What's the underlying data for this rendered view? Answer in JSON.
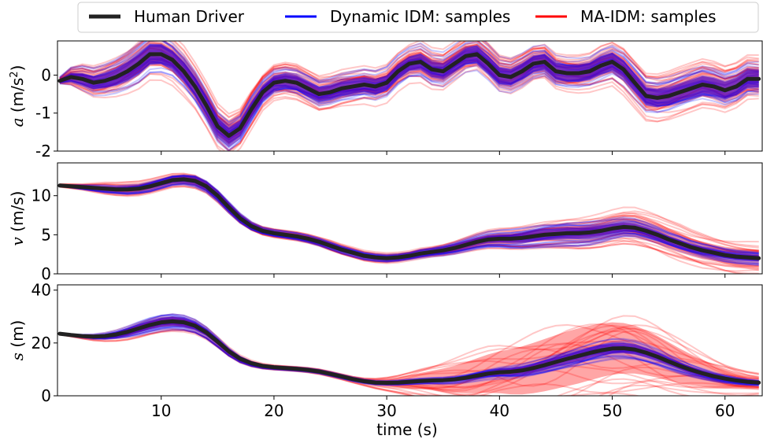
{
  "legend": {
    "human": "Human Driver",
    "dyn": "Dynamic IDM: samples",
    "ma": "MA-IDM: samples"
  },
  "colors": {
    "human": "#222222",
    "dyn": "#0000ff",
    "ma": "#ff0000",
    "frame": "#000000"
  },
  "chart_data": {
    "type": "line",
    "xlabel": "time (s)",
    "xlim": [
      0.8,
      63.3
    ],
    "xticks": [
      10,
      20,
      30,
      40,
      50,
      60
    ],
    "panels": [
      {
        "id": "a",
        "ylabel_symbol": "a",
        "ylabel_unit": "(m/s",
        "ylabel_sup": "2",
        "ylabel_close": ")",
        "ylim": [
          -2.0,
          0.9
        ],
        "yticks": [
          0,
          -1,
          -2
        ],
        "human": {
          "x": [
            1,
            2,
            3,
            4,
            5,
            6,
            7,
            8,
            9,
            10,
            11,
            12,
            13,
            14,
            15,
            16,
            17,
            18,
            19,
            20,
            21,
            22,
            23,
            24,
            25,
            26,
            27,
            28,
            29,
            30,
            31,
            32,
            33,
            34,
            35,
            36,
            37,
            38,
            39,
            40,
            41,
            42,
            43,
            44,
            45,
            46,
            47,
            48,
            49,
            50,
            51,
            52,
            53,
            54,
            55,
            56,
            57,
            58,
            59,
            60,
            61,
            62,
            63
          ],
          "y": [
            -0.15,
            -0.05,
            -0.1,
            -0.2,
            -0.15,
            -0.05,
            0.1,
            0.3,
            0.55,
            0.55,
            0.4,
            0.1,
            -0.3,
            -0.8,
            -1.35,
            -1.6,
            -1.4,
            -0.9,
            -0.45,
            -0.2,
            -0.15,
            -0.2,
            -0.35,
            -0.5,
            -0.45,
            -0.35,
            -0.3,
            -0.25,
            -0.3,
            -0.2,
            0.1,
            0.3,
            0.35,
            0.15,
            0.1,
            0.3,
            0.5,
            0.55,
            0.3,
            0.0,
            -0.05,
            0.1,
            0.3,
            0.35,
            0.1,
            0.05,
            0.05,
            0.1,
            0.25,
            0.35,
            0.15,
            -0.2,
            -0.55,
            -0.6,
            -0.55,
            -0.45,
            -0.35,
            -0.25,
            -0.3,
            -0.4,
            -0.3,
            -0.1,
            -0.1
          ]
        },
        "dyn_band": [
          0.1,
          0.25,
          0.35,
          0.4,
          0.45,
          0.5,
          0.55,
          0.6,
          0.6,
          0.6,
          0.55,
          0.55,
          0.55,
          0.55,
          0.55,
          0.55,
          0.5,
          0.5,
          0.45,
          0.45,
          0.45,
          0.45,
          0.45,
          0.45,
          0.45,
          0.45,
          0.45,
          0.45,
          0.45,
          0.45,
          0.45,
          0.45,
          0.5,
          0.5,
          0.5,
          0.5,
          0.5,
          0.5,
          0.5,
          0.5,
          0.5,
          0.5,
          0.5,
          0.5,
          0.5,
          0.5,
          0.5,
          0.5,
          0.55,
          0.55,
          0.55,
          0.55,
          0.55,
          0.55,
          0.55,
          0.55,
          0.55,
          0.55,
          0.55,
          0.55,
          0.55,
          0.55,
          0.55
        ],
        "ma_band": [
          0.1,
          0.3,
          0.45,
          0.5,
          0.55,
          0.6,
          0.65,
          0.7,
          0.7,
          0.7,
          0.7,
          0.7,
          0.65,
          0.65,
          0.65,
          0.65,
          0.6,
          0.6,
          0.55,
          0.55,
          0.55,
          0.55,
          0.55,
          0.55,
          0.55,
          0.55,
          0.55,
          0.55,
          0.55,
          0.55,
          0.55,
          0.55,
          0.6,
          0.6,
          0.6,
          0.6,
          0.6,
          0.6,
          0.6,
          0.6,
          0.6,
          0.6,
          0.6,
          0.6,
          0.6,
          0.6,
          0.6,
          0.6,
          0.65,
          0.65,
          0.7,
          0.7,
          0.7,
          0.7,
          0.7,
          0.7,
          0.7,
          0.7,
          0.7,
          0.7,
          0.7,
          0.7,
          0.7
        ]
      },
      {
        "id": "v",
        "ylabel_symbol": "v",
        "ylabel_unit": "(m/s)",
        "ylim": [
          0,
          14.2
        ],
        "yticks": [
          0,
          5,
          10
        ],
        "human": {
          "x": [
            1,
            2,
            3,
            4,
            5,
            6,
            7,
            8,
            9,
            10,
            11,
            12,
            13,
            14,
            15,
            16,
            17,
            18,
            19,
            20,
            21,
            22,
            23,
            24,
            25,
            26,
            27,
            28,
            29,
            30,
            31,
            32,
            33,
            34,
            35,
            36,
            37,
            38,
            39,
            40,
            41,
            42,
            43,
            44,
            45,
            46,
            47,
            48,
            49,
            50,
            51,
            52,
            53,
            54,
            55,
            56,
            57,
            58,
            59,
            60,
            61,
            62,
            63
          ],
          "y": [
            11.3,
            11.2,
            11.1,
            11.0,
            10.9,
            10.8,
            10.8,
            10.9,
            11.2,
            11.6,
            12.0,
            12.1,
            11.9,
            11.2,
            10.0,
            8.5,
            7.1,
            6.1,
            5.5,
            5.2,
            5.0,
            4.8,
            4.5,
            4.1,
            3.6,
            3.1,
            2.7,
            2.3,
            2.1,
            2.0,
            2.1,
            2.3,
            2.6,
            2.8,
            3.0,
            3.3,
            3.7,
            4.1,
            4.4,
            4.5,
            4.5,
            4.6,
            4.8,
            5.0,
            5.1,
            5.2,
            5.2,
            5.3,
            5.5,
            5.8,
            6.0,
            5.9,
            5.5,
            5.0,
            4.4,
            3.9,
            3.4,
            3.0,
            2.7,
            2.4,
            2.2,
            2.1,
            2.0
          ]
        },
        "dyn_band": [
          0.1,
          0.2,
          0.3,
          0.4,
          0.5,
          0.5,
          0.6,
          0.6,
          0.7,
          0.7,
          0.7,
          0.7,
          0.8,
          0.8,
          0.8,
          0.8,
          0.7,
          0.6,
          0.5,
          0.5,
          0.5,
          0.5,
          0.5,
          0.5,
          0.5,
          0.5,
          0.5,
          0.5,
          0.5,
          0.5,
          0.5,
          0.5,
          0.6,
          0.6,
          0.7,
          0.8,
          0.9,
          1.0,
          1.1,
          1.2,
          1.3,
          1.4,
          1.5,
          1.6,
          1.6,
          1.7,
          1.7,
          1.7,
          1.6,
          1.5,
          1.4,
          1.3,
          1.2,
          1.1,
          1.0,
          1.0,
          0.9,
          0.9,
          0.9,
          0.9,
          0.9,
          0.9,
          0.9
        ],
        "ma_band": [
          0.2,
          0.3,
          0.4,
          0.6,
          0.8,
          0.9,
          1.0,
          1.0,
          1.0,
          1.0,
          1.0,
          1.0,
          1.0,
          0.9,
          0.9,
          0.8,
          0.7,
          0.6,
          0.6,
          0.6,
          0.6,
          0.6,
          0.6,
          0.6,
          0.7,
          0.7,
          0.7,
          0.7,
          0.7,
          0.7,
          0.7,
          0.7,
          0.8,
          0.8,
          0.9,
          1.0,
          1.1,
          1.2,
          1.3,
          1.4,
          1.5,
          1.6,
          1.7,
          1.8,
          1.9,
          2.0,
          2.1,
          2.2,
          2.3,
          2.4,
          2.5,
          2.6,
          2.6,
          2.6,
          2.6,
          2.6,
          2.5,
          2.5,
          2.4,
          2.4,
          2.4,
          2.4,
          2.4
        ]
      },
      {
        "id": "s",
        "ylabel_symbol": "s",
        "ylabel_unit": "(m)",
        "ylim": [
          0,
          42
        ],
        "yticks": [
          0,
          20,
          40
        ],
        "human": {
          "x": [
            1,
            2,
            3,
            4,
            5,
            6,
            7,
            8,
            9,
            10,
            11,
            12,
            13,
            14,
            15,
            16,
            17,
            18,
            19,
            20,
            21,
            22,
            23,
            24,
            25,
            26,
            27,
            28,
            29,
            30,
            31,
            32,
            33,
            34,
            35,
            36,
            37,
            38,
            39,
            40,
            41,
            42,
            43,
            44,
            45,
            46,
            47,
            48,
            49,
            50,
            51,
            52,
            53,
            54,
            55,
            56,
            57,
            58,
            59,
            60,
            61,
            62,
            63
          ],
          "y": [
            23.5,
            23.0,
            22.6,
            22.4,
            22.6,
            23.2,
            24.2,
            25.5,
            26.8,
            27.8,
            28.2,
            27.8,
            26.5,
            24.0,
            20.5,
            16.8,
            14.0,
            12.3,
            11.3,
            10.8,
            10.5,
            10.2,
            9.8,
            9.2,
            8.3,
            7.3,
            6.3,
            5.5,
            5.0,
            4.9,
            5.0,
            5.3,
            5.6,
            5.8,
            5.9,
            6.2,
            6.8,
            7.6,
            8.4,
            8.9,
            9.1,
            9.6,
            10.5,
            11.6,
            12.8,
            14.0,
            15.1,
            16.2,
            17.2,
            17.9,
            18.0,
            17.5,
            16.3,
            14.8,
            13.0,
            11.3,
            9.8,
            8.5,
            7.4,
            6.5,
            5.8,
            5.3,
            5.0
          ]
        },
        "dyn_band": [
          0.3,
          0.5,
          0.8,
          1.2,
          1.6,
          2.0,
          2.6,
          3.2,
          3.6,
          3.8,
          3.8,
          3.6,
          3.2,
          2.8,
          2.4,
          2.0,
          1.6,
          1.3,
          1.1,
          1.0,
          1.0,
          1.0,
          1.0,
          1.0,
          1.0,
          1.0,
          1.0,
          1.0,
          1.0,
          1.0,
          1.1,
          1.2,
          1.3,
          1.4,
          1.6,
          1.8,
          2.0,
          2.3,
          2.6,
          2.9,
          3.2,
          3.5,
          3.8,
          4.1,
          4.3,
          4.5,
          4.7,
          4.8,
          4.8,
          4.7,
          4.5,
          4.3,
          4.0,
          3.7,
          3.4,
          3.1,
          2.8,
          2.5,
          2.2,
          2.0,
          1.8,
          1.6,
          1.5
        ],
        "ma_band": [
          0.3,
          0.6,
          1.0,
          1.5,
          2.0,
          2.6,
          3.2,
          3.7,
          4.0,
          4.2,
          4.2,
          4.0,
          3.6,
          3.2,
          2.8,
          2.4,
          2.0,
          1.7,
          1.5,
          1.4,
          1.4,
          1.4,
          1.4,
          1.4,
          1.4,
          1.4,
          1.5,
          1.8,
          2.4,
          3.2,
          4.2,
          5.4,
          6.8,
          8.2,
          9.8,
          11.4,
          13.0,
          14.6,
          16.2,
          17.6,
          19.0,
          20.2,
          21.2,
          22.0,
          22.6,
          23.0,
          23.2,
          23.0,
          22.6,
          22.0,
          21.2,
          20.2,
          19.0,
          17.6,
          16.2,
          14.6,
          13.0,
          11.4,
          9.8,
          8.4,
          7.2,
          6.2,
          5.5
        ]
      }
    ]
  }
}
